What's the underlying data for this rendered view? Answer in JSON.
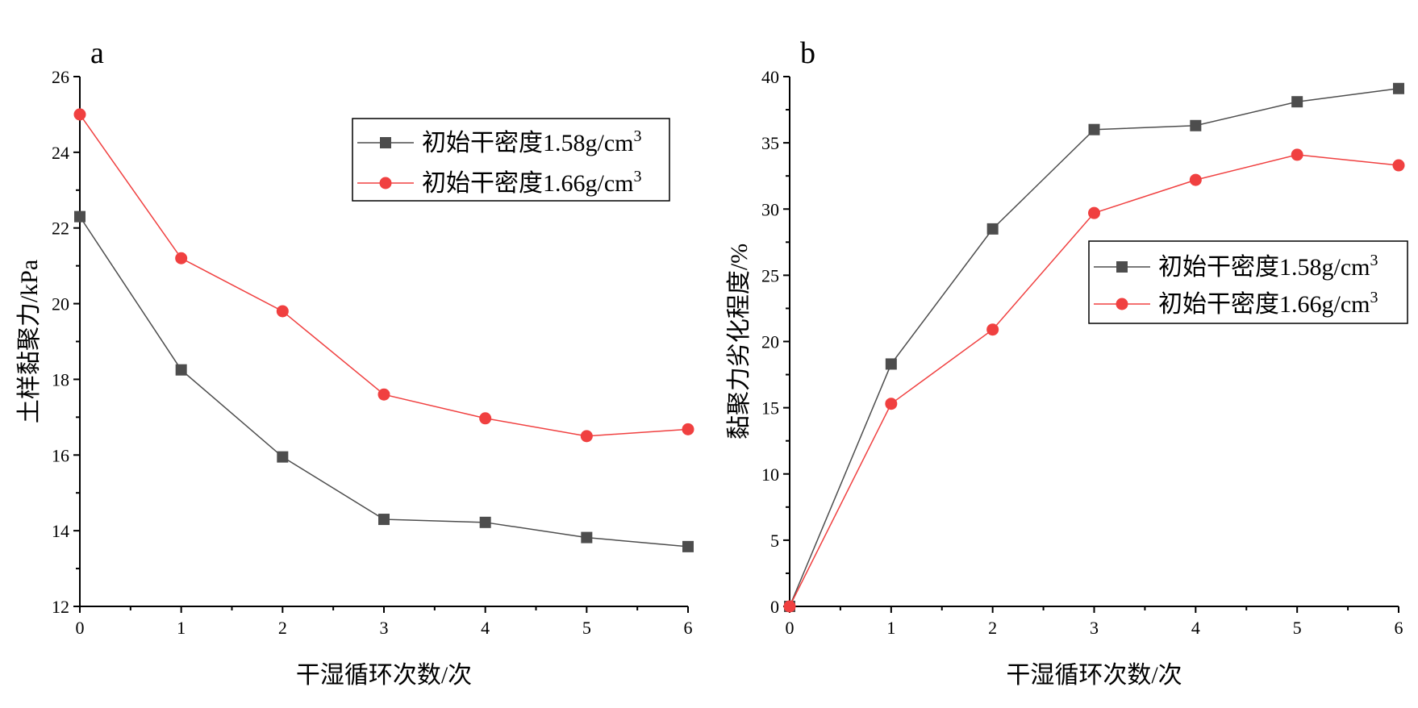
{
  "chart_data": [
    {
      "panel": "a",
      "type": "line",
      "xlabel": "干湿循环次数/次",
      "ylabel": "土样黏聚力/kPa",
      "xlim": [
        0,
        6
      ],
      "ylim": [
        12,
        26
      ],
      "xticks": [
        0,
        1,
        2,
        3,
        4,
        5,
        6
      ],
      "yticks": [
        12,
        14,
        16,
        18,
        20,
        22,
        24,
        26
      ],
      "x": [
        0,
        1,
        2,
        3,
        4,
        5,
        6
      ],
      "legend_position": "top-right",
      "series": [
        {
          "name": "初始干密度1.58g/cm",
          "sup": "3",
          "marker": "square",
          "color": "#4d4d4d",
          "values": [
            22.3,
            18.25,
            15.95,
            14.3,
            14.22,
            13.82,
            13.58
          ]
        },
        {
          "name": "初始干密度1.66g/cm",
          "sup": "3",
          "marker": "circle",
          "color": "#f04040",
          "values": [
            25.0,
            21.2,
            19.8,
            17.6,
            16.97,
            16.5,
            16.68
          ]
        }
      ]
    },
    {
      "panel": "b",
      "type": "line",
      "xlabel": "干湿循环次数/次",
      "ylabel": "黏聚力劣化程度/%",
      "xlim": [
        0,
        6
      ],
      "ylim": [
        0,
        40
      ],
      "xticks": [
        0,
        1,
        2,
        3,
        4,
        5,
        6
      ],
      "yticks": [
        0,
        5,
        10,
        15,
        20,
        25,
        30,
        35,
        40
      ],
      "x": [
        0,
        1,
        2,
        3,
        4,
        5,
        6
      ],
      "legend_position": "center-right",
      "series": [
        {
          "name": "初始干密度1.58g/cm",
          "sup": "3",
          "marker": "square",
          "color": "#4d4d4d",
          "values": [
            0,
            18.3,
            28.5,
            36.0,
            36.3,
            38.1,
            39.1
          ]
        },
        {
          "name": "初始干密度1.66g/cm",
          "sup": "3",
          "marker": "circle",
          "color": "#f04040",
          "values": [
            0,
            15.3,
            20.9,
            29.7,
            32.2,
            34.1,
            33.3
          ]
        }
      ]
    }
  ]
}
